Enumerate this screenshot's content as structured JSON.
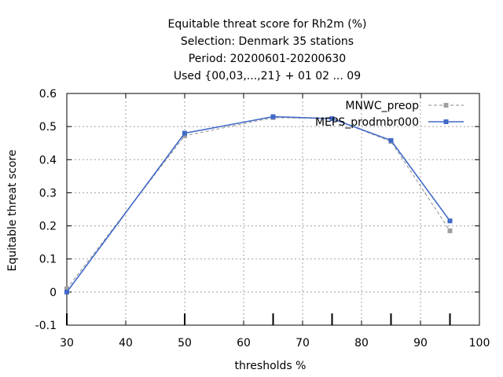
{
  "chart_data": {
    "type": "line",
    "title_lines": [
      "Equitable threat score  for Rh2m (%)",
      "Selection: Denmark     35 stations",
      "Period: 20200601-20200630",
      "Used {00,03,...,21} + 01 02 ... 09"
    ],
    "xlabel": "thresholds %",
    "ylabel": "Equitable threat score",
    "xlim": [
      30,
      100
    ],
    "ylim": [
      -0.1,
      0.6
    ],
    "xticks": [
      30,
      40,
      50,
      60,
      70,
      80,
      90,
      100
    ],
    "yticks": [
      -0.1,
      0,
      0.1,
      0.2,
      0.3,
      0.4,
      0.5,
      0.6
    ],
    "ytick_labels": [
      "-0.1",
      "0",
      "0.1",
      "0.2",
      "0.3",
      "0.4",
      "0.5",
      "0.6"
    ],
    "grid": true,
    "legend_position": "top-right",
    "threshold_markers": [
      30,
      50,
      65,
      75,
      85,
      95
    ],
    "series": [
      {
        "name": "MNWC_preop",
        "color": "#a0a0a0",
        "dashed": true,
        "x": [
          30,
          50,
          65,
          75,
          85,
          95
        ],
        "values": [
          0.01,
          0.472,
          0.527,
          0.524,
          0.455,
          0.185
        ]
      },
      {
        "name": "MEPS_prodmbr000",
        "color": "#4169c8",
        "dashed": false,
        "x": [
          30,
          50,
          65,
          75,
          85,
          95
        ],
        "values": [
          0.0,
          0.48,
          0.53,
          0.524,
          0.458,
          0.215
        ]
      }
    ]
  }
}
